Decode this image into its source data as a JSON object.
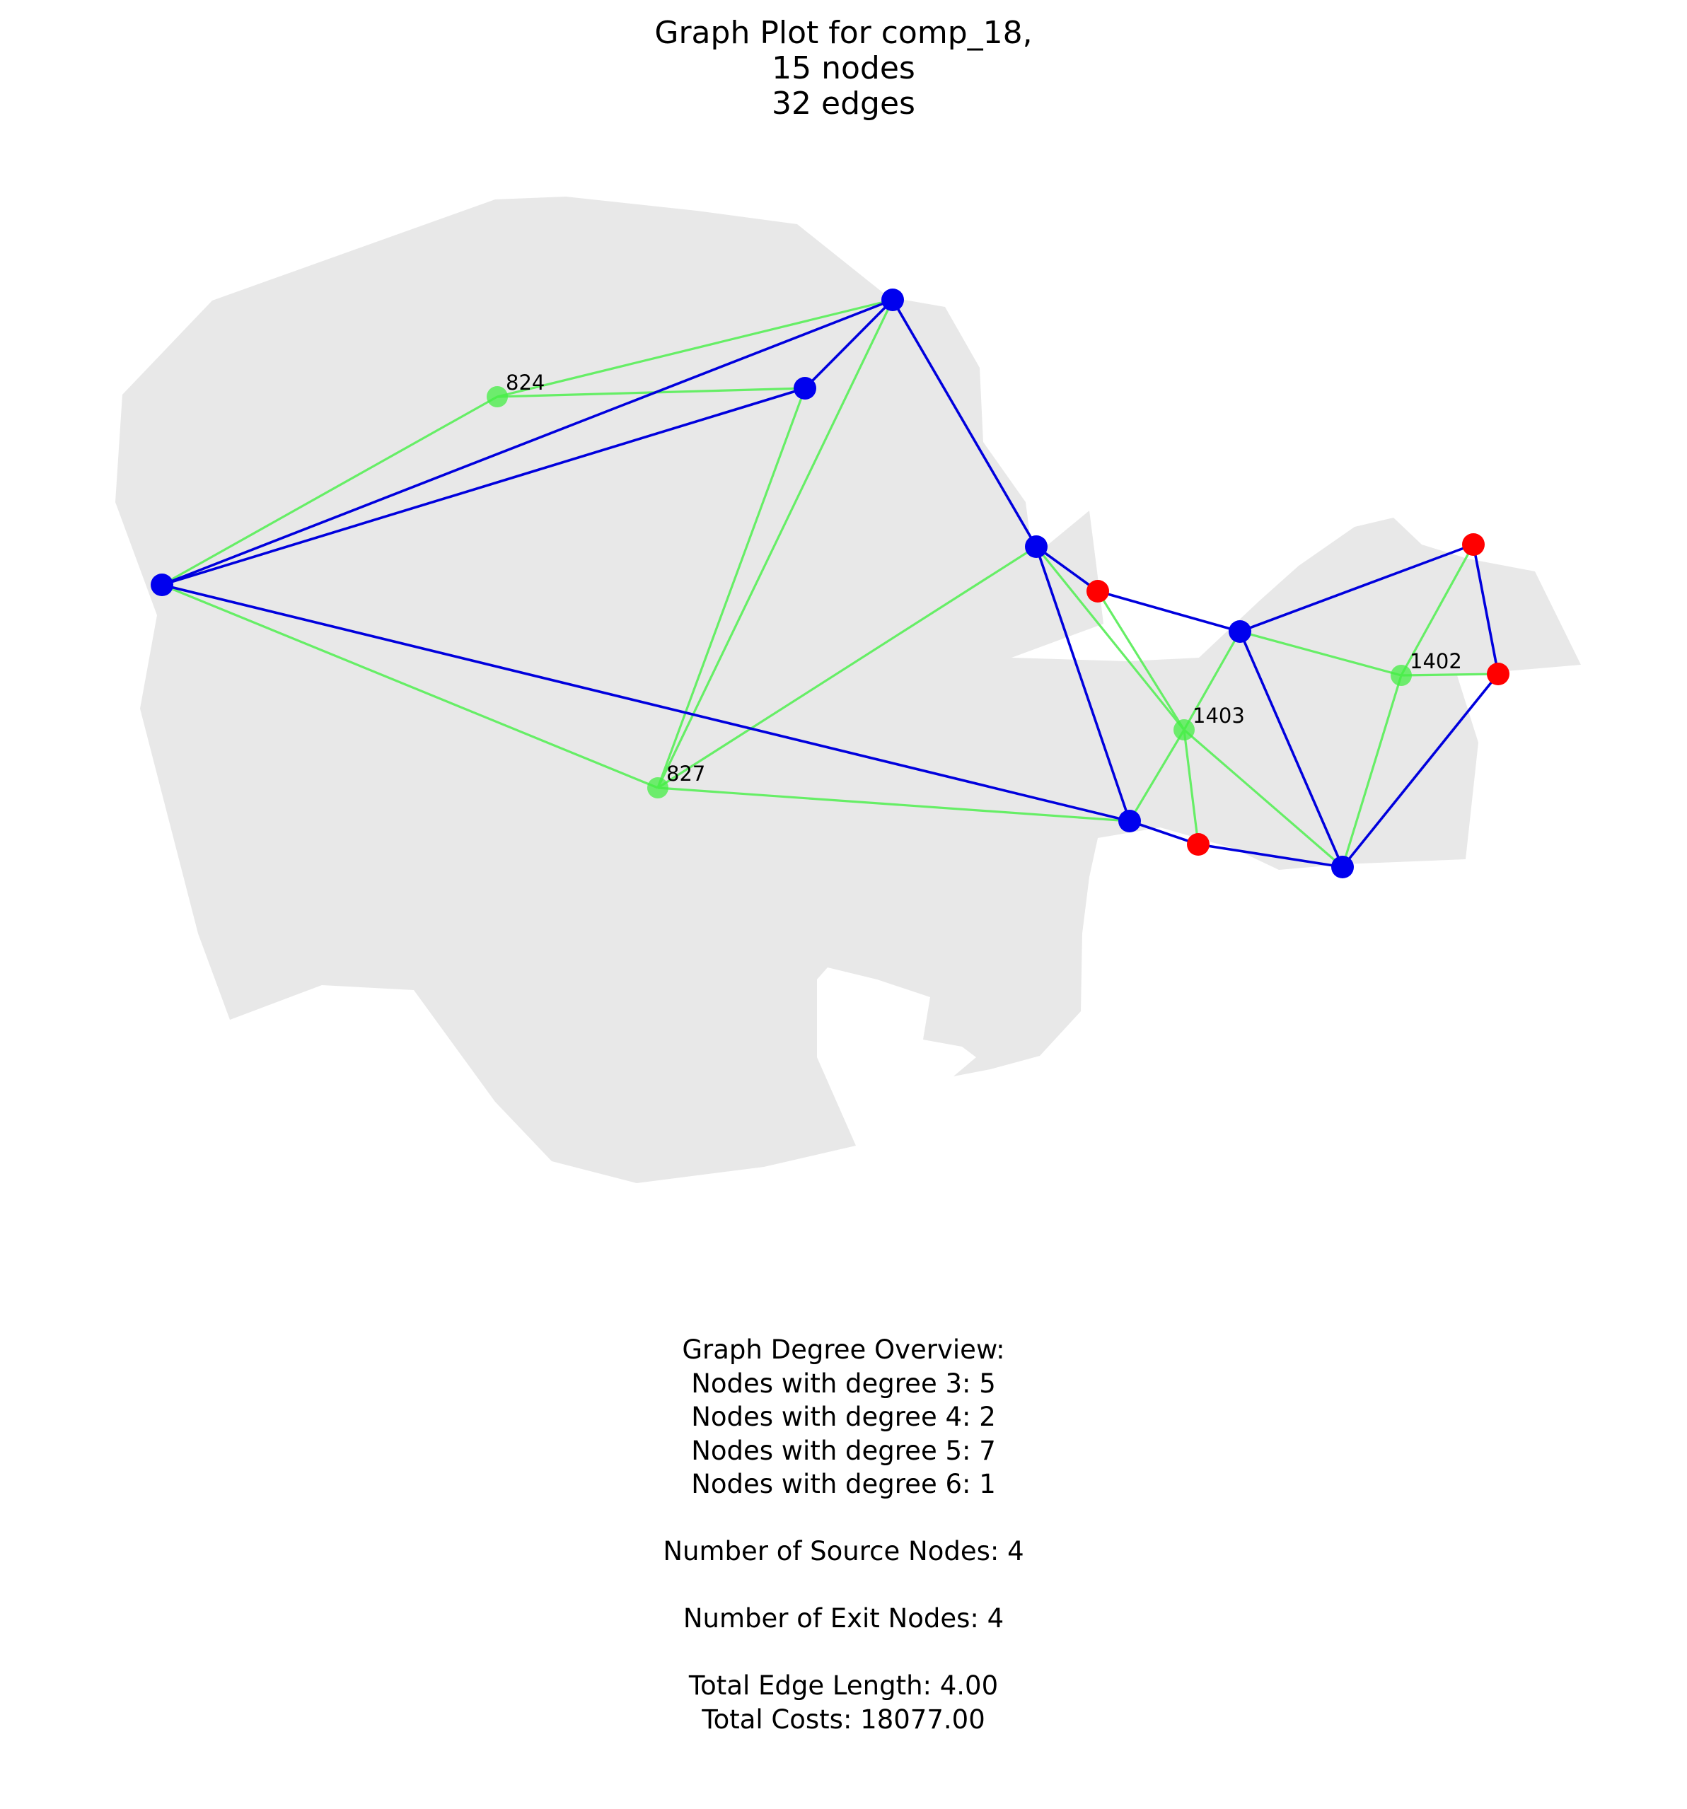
{
  "title_lines": [
    "Graph Plot for comp_18,",
    "15 nodes",
    "32 edges"
  ],
  "colors": {
    "region": "#e8e8e8",
    "source_node": "#ff0000",
    "junction_node": "#0000ee",
    "exit_node": "#44ee44",
    "blue_edge": "#0000dd",
    "green_edge": "#66ee66"
  },
  "node_labels": [
    "824",
    "827",
    "1403",
    "1402"
  ],
  "summary_lines": [
    "Graph Degree Overview:",
    "Nodes with degree 3: 5",
    "Nodes with degree 4: 2",
    "Nodes with degree 5: 7",
    "Nodes with degree 6: 1",
    "",
    "Number of Source Nodes: 4",
    "",
    "Number of Exit Nodes: 4",
    "",
    "Total Edge Length: 4.00",
    "Total Costs: 18077.00"
  ]
}
